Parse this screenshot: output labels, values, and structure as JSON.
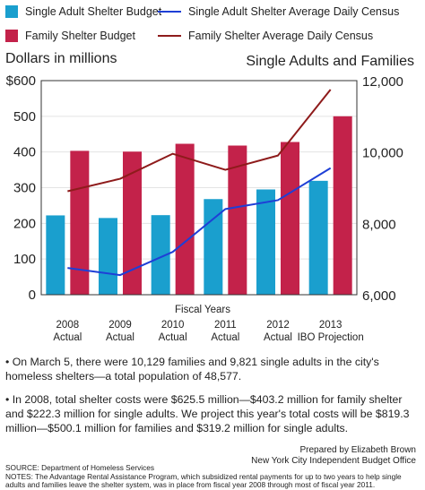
{
  "legend": {
    "single_budget": "Single Adult Shelter Budget",
    "family_budget": "Family Shelter Budget",
    "single_census": "Single Adult Shelter Average Daily Census",
    "family_census": "Family Shelter Average Daily Census"
  },
  "colors": {
    "single_budget": "#1a9fce",
    "family_budget": "#c3224a",
    "single_census": "#1e3fd6",
    "family_census": "#8e1b1b"
  },
  "chart_data": {
    "type": "bar",
    "categories": [
      [
        "2008",
        "Actual"
      ],
      [
        "2009",
        "Actual"
      ],
      [
        "2010",
        "Actual"
      ],
      [
        "2011",
        "Actual"
      ],
      [
        "2012",
        "Actual"
      ],
      [
        "2013",
        "IBO Projection"
      ]
    ],
    "xlabel": "Fiscal Years",
    "ylabel": "Dollars in millions",
    "y2label": "Single Adults and Families",
    "ylim": [
      0,
      600
    ],
    "y2lim": [
      6000,
      12000
    ],
    "yticks": [
      "0",
      "100",
      "200",
      "300",
      "400",
      "500",
      "$600"
    ],
    "y2ticks": [
      "6,000",
      "8,000",
      "10,000",
      "12,000"
    ],
    "bar_series": [
      {
        "name": "Single Adult Shelter Budget",
        "values": [
          222.3,
          215,
          223,
          268,
          295,
          319.2
        ]
      },
      {
        "name": "Family Shelter Budget",
        "values": [
          403.2,
          401,
          423,
          418,
          428,
          500.1
        ]
      }
    ],
    "line_series": [
      {
        "name": "Single Adult Shelter Average Daily Census",
        "values": [
          6750,
          6550,
          7200,
          8400,
          8650,
          9550
        ]
      },
      {
        "name": "Family Shelter Average Daily Census",
        "values": [
          8900,
          9250,
          9950,
          9500,
          9900,
          11750
        ]
      }
    ]
  },
  "notes": {
    "note1": "• On March 5, there were 10,129 families and 9,821 single adults in the city's homeless shelters—a total population of 48,577.",
    "note2": "• In 2008, total shelter costs were $625.5 million—$403.2 million for family shelter and $222.3 million for single adults. We project this year's total costs will be $819.3 million—$500.1 million for families and $319.2 million for single adults."
  },
  "credit": {
    "line1": "Prepared by Elizabeth Brown",
    "line2": "New York City Independent Budget Office"
  },
  "source": {
    "line1": "SOURCE: Department of Homeless Services",
    "line2": "NOTES: The Advantage Rental Assistance Program, which subsidized rental payments for up to two years to help single adults and families leave the shelter system, was in place from fiscal year 2008 through most of fiscal year 2011."
  }
}
